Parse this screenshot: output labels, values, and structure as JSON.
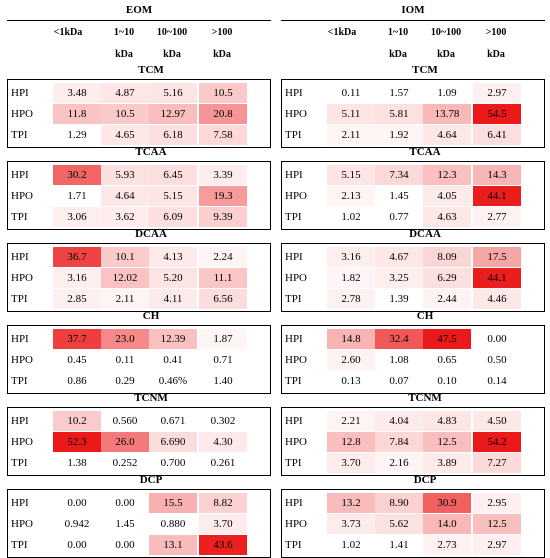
{
  "chart_data": [
    {
      "type": "heatmap",
      "title": "EOM",
      "columns": [
        "<1kDa",
        "1~10 kDa",
        "10~100 kDa",
        ">100 kDa"
      ],
      "row_labels": [
        "HPI",
        "HPO",
        "TPI"
      ],
      "groups": [
        {
          "name": "TCM",
          "values": [
            [
              "3.48",
              "4.87",
              "5.16",
              "10.5"
            ],
            [
              "11.8",
              "10.5",
              "12.97",
              "20.8"
            ],
            [
              "1.29",
              "4.65",
              "6.18",
              "7.58"
            ]
          ]
        },
        {
          "name": "TCAA",
          "values": [
            [
              "30.2",
              "5.93",
              "6.45",
              "3.39"
            ],
            [
              "1.71",
              "4.64",
              "5.15",
              "19.3"
            ],
            [
              "3.06",
              "3.62",
              "6.09",
              "9.39"
            ]
          ]
        },
        {
          "name": "DCAA",
          "values": [
            [
              "36.7",
              "10.1",
              "4.13",
              "2.24"
            ],
            [
              "3.16",
              "12.02",
              "5.20",
              "11.1"
            ],
            [
              "2.85",
              "2.11",
              "4.11",
              "6.56"
            ]
          ]
        },
        {
          "name": "CH",
          "values": [
            [
              "37.7",
              "23.0",
              "12.39",
              "1.87"
            ],
            [
              "0.45",
              "0.11",
              "0.41",
              "0.71"
            ],
            [
              "0.86",
              "0.29",
              "0.46%",
              "1.40"
            ]
          ]
        },
        {
          "name": "TCNM",
          "values": [
            [
              "10.2",
              "0.560",
              "0.671",
              "0.302"
            ],
            [
              "52.3",
              "26.0",
              "6.690",
              "4.30"
            ],
            [
              "1.38",
              "0.252",
              "0.700",
              "0.261"
            ]
          ]
        },
        {
          "name": "DCP",
          "values": [
            [
              "0.00",
              "0.00",
              "15.5",
              "8.82"
            ],
            [
              "0.942",
              "1.45",
              "0.880",
              "3.70"
            ],
            [
              "0.00",
              "0.00",
              "13.1",
              "43.6"
            ]
          ]
        }
      ]
    },
    {
      "type": "heatmap",
      "title": "IOM",
      "columns": [
        "<1kDa",
        "1~10 kDa",
        "10~100 kDa",
        ">100 kDa"
      ],
      "row_labels": [
        "HPI",
        "HPO",
        "TPI"
      ],
      "groups": [
        {
          "name": "TCM",
          "values": [
            [
              "0.11",
              "1.57",
              "1.09",
              "2.97"
            ],
            [
              "5.11",
              "5.81",
              "13.78",
              "54.5"
            ],
            [
              "2.11",
              "1.92",
              "4.64",
              "6.41"
            ]
          ]
        },
        {
          "name": "TCAA",
          "values": [
            [
              "5.15",
              "7.34",
              "12.3",
              "14.3"
            ],
            [
              "2.13",
              "1.45",
              "4.05",
              "44.1"
            ],
            [
              "1.02",
              "0.77",
              "4.63",
              "2.77"
            ]
          ]
        },
        {
          "name": "DCAA",
          "values": [
            [
              "3.16",
              "4.67",
              "8.09",
              "17.5"
            ],
            [
              "1.82",
              "3.25",
              "6.29",
              "44.1"
            ],
            [
              "2.78",
              "1.39",
              "2.44",
              "4.46"
            ]
          ]
        },
        {
          "name": "CH",
          "values": [
            [
              "14.8",
              "32.4",
              "47.5",
              "0.00"
            ],
            [
              "2.60",
              "1.08",
              "0.65",
              "0.50"
            ],
            [
              "0.13",
              "0.07",
              "0.10",
              "0.14"
            ]
          ]
        },
        {
          "name": "TCNM",
          "values": [
            [
              "2.21",
              "4.04",
              "4.83",
              "4.50"
            ],
            [
              "12.8",
              "7.84",
              "12.5",
              "54.2"
            ],
            [
              "3.70",
              "2.16",
              "3.89",
              "7.27"
            ]
          ]
        },
        {
          "name": "DCP",
          "values": [
            [
              "13.2",
              "8.90",
              "30.9",
              "2.95"
            ],
            [
              "3.73",
              "5.62",
              "14.0",
              "12.5"
            ],
            [
              "1.02",
              "1.41",
              "2.73",
              "2.97"
            ]
          ]
        }
      ]
    }
  ]
}
